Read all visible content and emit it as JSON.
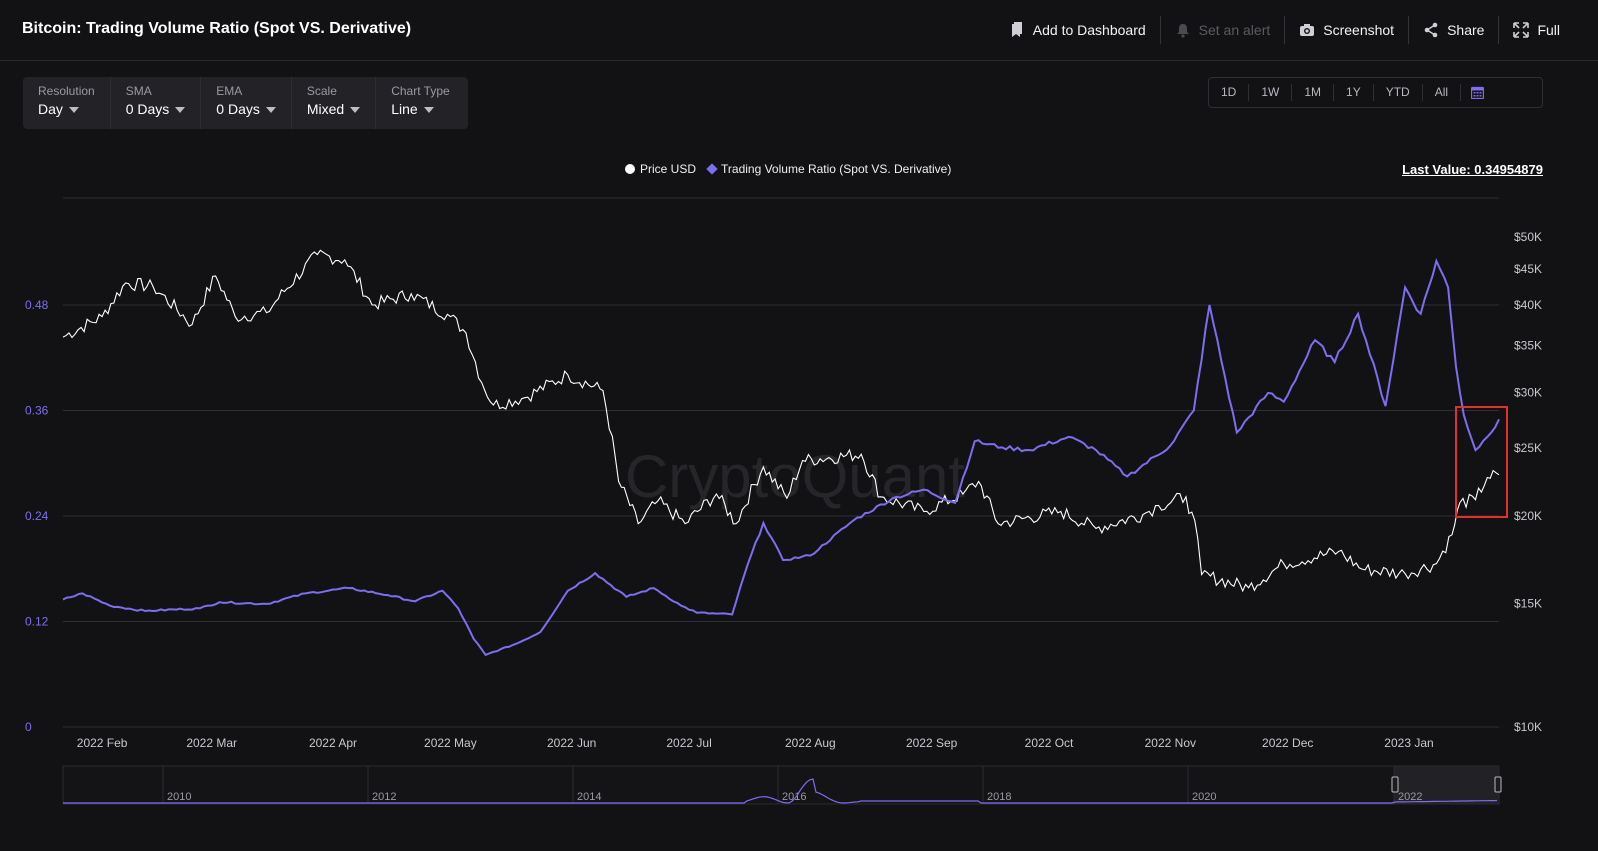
{
  "header": {
    "title": "Bitcoin: Trading Volume Ratio (Spot VS. Derivative)",
    "actions": [
      {
        "label": "Add to Dashboard",
        "icon": "bookmark-icon",
        "disabled": false
      },
      {
        "label": "Set an alert",
        "icon": "bell-icon",
        "disabled": true
      },
      {
        "label": "Screenshot",
        "icon": "camera-icon",
        "disabled": false
      },
      {
        "label": "Share",
        "icon": "share-icon",
        "disabled": false
      },
      {
        "label": "Full",
        "icon": "fullscreen-icon",
        "disabled": false
      }
    ]
  },
  "controls": [
    {
      "label": "Resolution",
      "value": "Day"
    },
    {
      "label": "SMA",
      "value": "0 Days"
    },
    {
      "label": "EMA",
      "value": "0 Days"
    },
    {
      "label": "Scale",
      "value": "Mixed"
    },
    {
      "label": "Chart Type",
      "value": "Line"
    }
  ],
  "ranges": [
    "1D",
    "1W",
    "1M",
    "1Y",
    "YTD",
    "All"
  ],
  "calendar_icon": "calendar-icon",
  "watermark": "CryptoQuant",
  "colors": {
    "ratio": "#7b6ff0",
    "price": "#ffffff",
    "highlight": "#e03030",
    "background": "#121214"
  },
  "chart_data": {
    "type": "line",
    "legend": [
      "Price USD",
      "Trading Volume Ratio (Spot VS. Derivative)"
    ],
    "last_value_label": "Last Value: 0.34954879",
    "x_tick_labels": [
      "2022 Feb",
      "2022 Mar",
      "2022 Apr",
      "2022 May",
      "2022 Jun",
      "2022 Jul",
      "2022 Aug",
      "2022 Sep",
      "2022 Oct",
      "2022 Nov",
      "2022 Dec",
      "2023 Jan"
    ],
    "left_axis": {
      "ticks": [
        "0",
        "0.12",
        "0.24",
        "0.36",
        "0.48"
      ],
      "ylim": [
        0,
        0.48
      ]
    },
    "right_axis": {
      "scale": "log",
      "ticks": [
        "$10K",
        "$15K",
        "$20K",
        "$25K",
        "$30K",
        "$35K",
        "$40K",
        "$45K",
        "$50K"
      ]
    },
    "x_range": [
      "2022-01-22",
      "2023-01-24"
    ],
    "series": [
      {
        "name": "Price USD",
        "axis": "right",
        "points": [
          [
            "2022-01-22",
            36000
          ],
          [
            "2022-02-01",
            38500
          ],
          [
            "2022-02-07",
            43000
          ],
          [
            "2022-02-14",
            42500
          ],
          [
            "2022-02-24",
            37500
          ],
          [
            "2022-03-02",
            44000
          ],
          [
            "2022-03-07",
            38500
          ],
          [
            "2022-03-15",
            39000
          ],
          [
            "2022-03-28",
            47200
          ],
          [
            "2022-04-04",
            46400
          ],
          [
            "2022-04-11",
            40000
          ],
          [
            "2022-04-21",
            41500
          ],
          [
            "2022-05-01",
            38500
          ],
          [
            "2022-05-05",
            36500
          ],
          [
            "2022-05-09",
            31000
          ],
          [
            "2022-05-12",
            28800
          ],
          [
            "2022-05-20",
            29500
          ],
          [
            "2022-05-31",
            31800
          ],
          [
            "2022-06-09",
            30200
          ],
          [
            "2022-06-13",
            22400
          ],
          [
            "2022-06-18",
            19500
          ],
          [
            "2022-06-23",
            21000
          ],
          [
            "2022-06-30",
            19500
          ],
          [
            "2022-07-08",
            21500
          ],
          [
            "2022-07-13",
            19500
          ],
          [
            "2022-07-20",
            23500
          ],
          [
            "2022-07-26",
            21200
          ],
          [
            "2022-07-30",
            24000
          ],
          [
            "2022-08-14",
            24500
          ],
          [
            "2022-08-19",
            21300
          ],
          [
            "2022-08-30",
            20300
          ],
          [
            "2022-09-09",
            21500
          ],
          [
            "2022-09-13",
            22400
          ],
          [
            "2022-09-18",
            19500
          ],
          [
            "2022-10-04",
            20300
          ],
          [
            "2022-10-13",
            19200
          ],
          [
            "2022-10-25",
            20100
          ],
          [
            "2022-10-29",
            20700
          ],
          [
            "2022-11-05",
            21300
          ],
          [
            "2022-11-08",
            18600
          ],
          [
            "2022-11-09",
            16500
          ],
          [
            "2022-11-21",
            15800
          ],
          [
            "2022-11-30",
            17100
          ],
          [
            "2022-12-14",
            17800
          ],
          [
            "2022-12-20",
            16800
          ],
          [
            "2022-12-31",
            16550
          ],
          [
            "2023-01-08",
            17100
          ],
          [
            "2023-01-12",
            18800
          ],
          [
            "2023-01-14",
            20900
          ],
          [
            "2023-01-18",
            21100
          ],
          [
            "2023-01-21",
            22700
          ],
          [
            "2023-01-24",
            22900
          ]
        ]
      },
      {
        "name": "Trading Volume Ratio (Spot VS. Derivative)",
        "axis": "left",
        "points": [
          [
            "2022-01-22",
            0.145
          ],
          [
            "2022-01-27",
            0.152
          ],
          [
            "2022-02-03",
            0.138
          ],
          [
            "2022-02-12",
            0.132
          ],
          [
            "2022-02-26",
            0.135
          ],
          [
            "2022-03-03",
            0.142
          ],
          [
            "2022-03-15",
            0.14
          ],
          [
            "2022-03-25",
            0.152
          ],
          [
            "2022-04-05",
            0.158
          ],
          [
            "2022-04-15",
            0.15
          ],
          [
            "2022-04-22",
            0.143
          ],
          [
            "2022-04-29",
            0.155
          ],
          [
            "2022-05-03",
            0.135
          ],
          [
            "2022-05-07",
            0.1
          ],
          [
            "2022-05-10",
            0.082
          ],
          [
            "2022-05-18",
            0.095
          ],
          [
            "2022-05-24",
            0.108
          ],
          [
            "2022-05-31",
            0.155
          ],
          [
            "2022-06-07",
            0.175
          ],
          [
            "2022-06-15",
            0.148
          ],
          [
            "2022-06-22",
            0.158
          ],
          [
            "2022-06-29",
            0.138
          ],
          [
            "2022-07-03",
            0.13
          ],
          [
            "2022-07-12",
            0.128
          ],
          [
            "2022-07-16",
            0.185
          ],
          [
            "2022-07-20",
            0.232
          ],
          [
            "2022-07-25",
            0.19
          ],
          [
            "2022-08-01",
            0.195
          ],
          [
            "2022-08-12",
            0.235
          ],
          [
            "2022-08-22",
            0.26
          ],
          [
            "2022-08-30",
            0.27
          ],
          [
            "2022-09-07",
            0.255
          ],
          [
            "2022-09-12",
            0.325
          ],
          [
            "2022-09-19",
            0.318
          ],
          [
            "2022-09-26",
            0.315
          ],
          [
            "2022-10-06",
            0.33
          ],
          [
            "2022-10-13",
            0.315
          ],
          [
            "2022-10-21",
            0.285
          ],
          [
            "2022-11-01",
            0.32
          ],
          [
            "2022-11-07",
            0.36
          ],
          [
            "2022-11-11",
            0.48
          ],
          [
            "2022-11-18",
            0.335
          ],
          [
            "2022-11-26",
            0.38
          ],
          [
            "2022-11-30",
            0.37
          ],
          [
            "2022-12-08",
            0.44
          ],
          [
            "2022-12-13",
            0.415
          ],
          [
            "2022-12-19",
            0.47
          ],
          [
            "2022-12-26",
            0.365
          ],
          [
            "2022-12-31",
            0.5
          ],
          [
            "2023-01-04",
            0.47
          ],
          [
            "2023-01-08",
            0.53
          ],
          [
            "2023-01-11",
            0.5
          ],
          [
            "2023-01-13",
            0.41
          ],
          [
            "2023-01-15",
            0.355
          ],
          [
            "2023-01-18",
            0.315
          ],
          [
            "2023-01-21",
            0.33
          ],
          [
            "2023-01-24",
            0.35
          ]
        ]
      }
    ],
    "navigator": {
      "tick_labels": [
        "2010",
        "2012",
        "2014",
        "2016",
        "2018",
        "2020",
        "2022"
      ]
    }
  }
}
